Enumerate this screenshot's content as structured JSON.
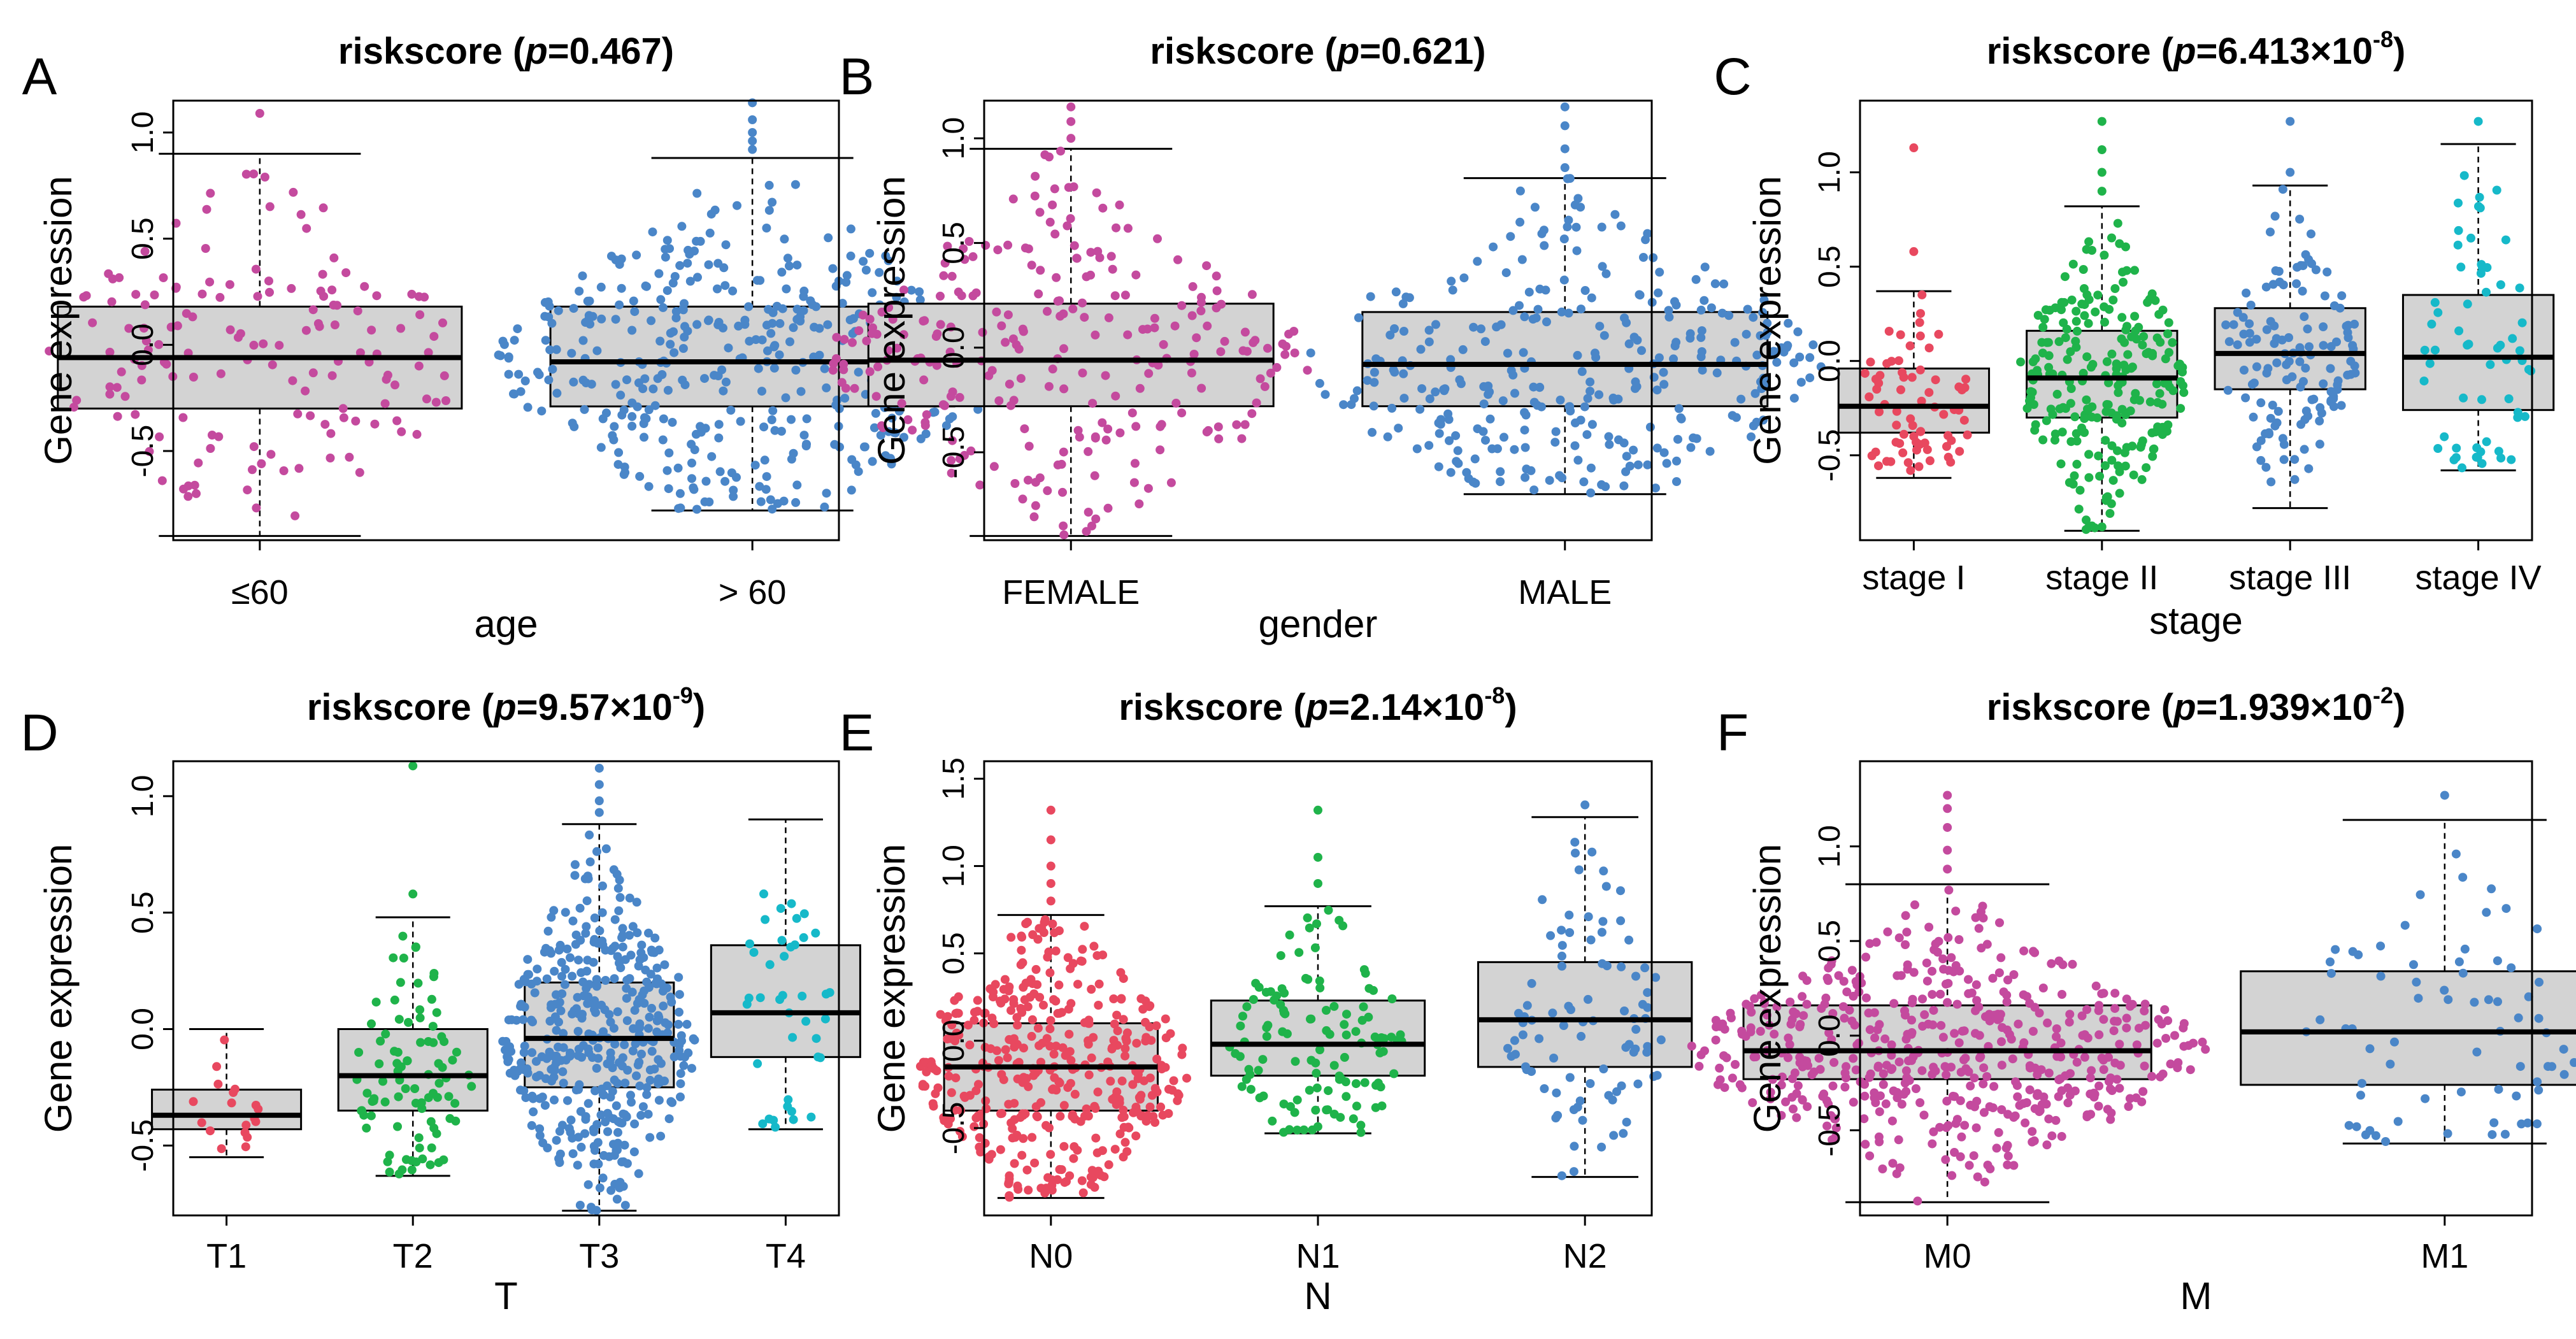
{
  "figure": {
    "y_axis_label": "Gene expression",
    "score_name": "riskscore"
  },
  "colors": {
    "magenta": "#C44A9E",
    "blue": "#4A86C8",
    "red": "#E8485F",
    "green": "#1FB34A",
    "teal": "#16B9C9",
    "box_fill": "#D3D3D3"
  },
  "chart_data": [
    {
      "panel": "A",
      "type": "boxplot",
      "title": "riskscore",
      "p_text": "0.467",
      "p_base": "",
      "p_exp": "",
      "xlabel": "age",
      "ylabel": "Gene expression",
      "ylim": [
        -0.92,
        1.15
      ],
      "yticks": [
        -0.5,
        0.0,
        0.5,
        1.0
      ],
      "ytick_labels": [
        "-0.5",
        "0.0",
        "0.5",
        "1.0"
      ],
      "categories": [
        "≤60",
        "> 60"
      ],
      "groups": [
        {
          "name": "≤60",
          "color": "magenta",
          "n": 150,
          "spread": 0.85,
          "min": -0.9,
          "q1": -0.3,
          "median": -0.06,
          "q3": 0.18,
          "max": 0.9,
          "outliers": [
            1.09
          ]
        },
        {
          "name": "> 60",
          "color": "blue",
          "n": 420,
          "spread": 1.0,
          "min": -0.78,
          "q1": -0.29,
          "median": -0.08,
          "q3": 0.18,
          "max": 0.88,
          "outliers": [
            0.92,
            0.96,
            1.0,
            1.06,
            1.14
          ]
        }
      ]
    },
    {
      "panel": "B",
      "type": "boxplot",
      "title": "riskscore",
      "p_text": "0.621",
      "p_base": "",
      "p_exp": "",
      "xlabel": "gender",
      "ylabel": "Gene expression",
      "ylim": [
        -0.92,
        1.18
      ],
      "yticks": [
        -0.5,
        0.0,
        0.5,
        1.0
      ],
      "ytick_labels": [
        "-0.5",
        "0.0",
        "0.5",
        "1.0"
      ],
      "categories": [
        "FEMALE",
        "MALE"
      ],
      "groups": [
        {
          "name": "FEMALE",
          "color": "magenta",
          "n": 260,
          "spread": 0.95,
          "min": -0.9,
          "q1": -0.28,
          "median": -0.06,
          "q3": 0.21,
          "max": 0.95,
          "outliers": [
            1.0,
            1.08,
            1.15
          ]
        },
        {
          "name": "MALE",
          "color": "blue",
          "n": 310,
          "spread": 1.0,
          "min": -0.7,
          "q1": -0.28,
          "median": -0.08,
          "q3": 0.17,
          "max": 0.81,
          "outliers": [
            0.86,
            0.95,
            1.06,
            1.15
          ]
        }
      ]
    },
    {
      "panel": "C",
      "type": "boxplot",
      "title": "riskscore",
      "p_text": "",
      "p_base": "6.413×10",
      "p_exp": "-8",
      "xlabel": "stage",
      "ylabel": "Gene expression",
      "ylim": [
        -0.95,
        1.38
      ],
      "yticks": [
        -0.5,
        0.0,
        0.5,
        1.0
      ],
      "ytick_labels": [
        "-0.5",
        "0.0",
        "0.5",
        "1.0"
      ],
      "categories": [
        "stage I",
        "stage II",
        "stage III",
        "stage IV"
      ],
      "groups": [
        {
          "name": "stage I",
          "color": "red",
          "n": 70,
          "spread": 0.6,
          "min": -0.62,
          "q1": -0.38,
          "median": -0.24,
          "q3": -0.04,
          "max": 0.37,
          "outliers": [
            0.58,
            1.13
          ]
        },
        {
          "name": "stage II",
          "color": "green",
          "n": 240,
          "spread": 0.85,
          "min": -0.9,
          "q1": -0.3,
          "median": -0.09,
          "q3": 0.16,
          "max": 0.82,
          "outliers": [
            0.9,
            1.0,
            1.12,
            1.27
          ]
        },
        {
          "name": "stage III",
          "color": "blue",
          "n": 130,
          "spread": 0.7,
          "min": -0.78,
          "q1": -0.15,
          "median": 0.04,
          "q3": 0.28,
          "max": 0.93,
          "outliers": [
            1.0,
            1.27
          ]
        },
        {
          "name": "stage IV",
          "color": "teal",
          "n": 60,
          "spread": 0.55,
          "min": -0.58,
          "q1": -0.26,
          "median": 0.02,
          "q3": 0.35,
          "max": 1.15,
          "outliers": [
            1.27
          ]
        }
      ]
    },
    {
      "panel": "D",
      "type": "boxplot",
      "title": "riskscore",
      "p_text": "",
      "p_base": "9.57×10",
      "p_exp": "-9",
      "xlabel": "T",
      "ylabel": "Gene expression",
      "ylim": [
        -0.8,
        1.15
      ],
      "yticks": [
        -0.5,
        0.0,
        0.5,
        1.0
      ],
      "ytick_labels": [
        "-0.5",
        "0.0",
        "0.5",
        "1.0"
      ],
      "categories": [
        "T1",
        "T2",
        "T3",
        "T4"
      ],
      "groups": [
        {
          "name": "T1",
          "color": "red",
          "n": 18,
          "spread": 0.35,
          "min": -0.55,
          "q1": -0.43,
          "median": -0.37,
          "q3": -0.26,
          "max": 0.0,
          "outliers": []
        },
        {
          "name": "T2",
          "color": "green",
          "n": 90,
          "spread": 0.6,
          "min": -0.63,
          "q1": -0.35,
          "median": -0.2,
          "q3": 0.0,
          "max": 0.48,
          "outliers": [
            0.58,
            1.13
          ]
        },
        {
          "name": "T3",
          "color": "blue",
          "n": 420,
          "spread": 1.0,
          "min": -0.78,
          "q1": -0.25,
          "median": -0.04,
          "q3": 0.2,
          "max": 0.88,
          "outliers": [
            0.93,
            0.98,
            1.05,
            1.12
          ]
        },
        {
          "name": "T4",
          "color": "teal",
          "n": 40,
          "spread": 0.45,
          "min": -0.43,
          "q1": -0.12,
          "median": 0.07,
          "q3": 0.36,
          "max": 0.9,
          "outliers": []
        }
      ]
    },
    {
      "panel": "E",
      "type": "boxplot",
      "title": "riskscore",
      "p_text": "",
      "p_base": "2.14×10",
      "p_exp": "-8",
      "xlabel": "N",
      "ylabel": "Gene expression",
      "ylim": [
        -1.0,
        1.6
      ],
      "yticks": [
        -0.5,
        0.0,
        0.5,
        1.0,
        1.5
      ],
      "ytick_labels": [
        "-0.5",
        "0.0",
        "0.5",
        "1.0",
        "1.5"
      ],
      "categories": [
        "N0",
        "N1",
        "N2"
      ],
      "groups": [
        {
          "name": "N0",
          "color": "red",
          "n": 400,
          "spread": 1.0,
          "min": -0.9,
          "q1": -0.4,
          "median": -0.15,
          "q3": 0.1,
          "max": 0.72,
          "outliers": [
            0.8,
            0.9,
            1.0,
            1.15,
            1.32
          ]
        },
        {
          "name": "N1",
          "color": "green",
          "n": 120,
          "spread": 0.65,
          "min": -0.53,
          "q1": -0.2,
          "median": -0.02,
          "q3": 0.23,
          "max": 0.77,
          "outliers": [
            0.9,
            1.05,
            1.32
          ]
        },
        {
          "name": "N2",
          "color": "blue",
          "n": 90,
          "spread": 0.6,
          "min": -0.78,
          "q1": -0.15,
          "median": 0.12,
          "q3": 0.45,
          "max": 1.28,
          "outliers": [
            1.35
          ]
        }
      ]
    },
    {
      "panel": "F",
      "type": "boxplot",
      "title": "riskscore",
      "p_text": "",
      "p_base": "1.939×10",
      "p_exp": "-2",
      "xlabel": "M",
      "ylabel": "Gene expression",
      "ylim": [
        -0.95,
        1.45
      ],
      "yticks": [
        -0.5,
        0.0,
        0.5,
        1.0
      ],
      "ytick_labels": [
        "-0.5",
        "0.0",
        "0.5",
        "1.0"
      ],
      "categories": [
        "M0",
        "M1"
      ],
      "groups": [
        {
          "name": "M0",
          "color": "magenta",
          "n": 520,
          "spread": 1.0,
          "min": -0.88,
          "q1": -0.23,
          "median": -0.08,
          "q3": 0.16,
          "max": 0.8,
          "outliers": [
            0.88,
            0.98,
            1.1,
            1.2,
            1.27
          ]
        },
        {
          "name": "M1",
          "color": "blue",
          "n": 70,
          "spread": 0.55,
          "min": -0.57,
          "q1": -0.26,
          "median": 0.02,
          "q3": 0.34,
          "max": 1.14,
          "outliers": [
            1.27
          ]
        }
      ]
    }
  ]
}
